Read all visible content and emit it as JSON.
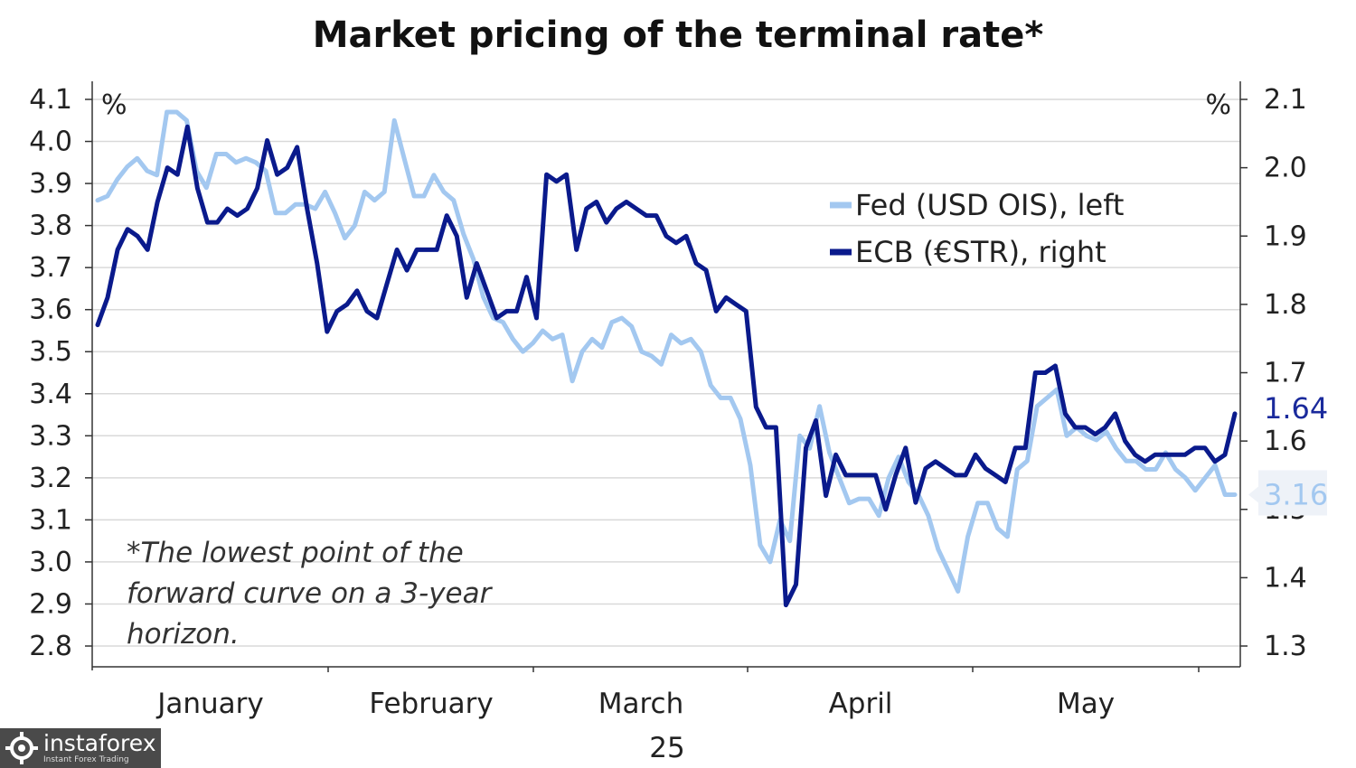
{
  "chart_data": {
    "type": "line",
    "title": "Market pricing of the terminal rate*",
    "annotation": [
      "*The lowest point of the",
      "forward curve on a 3-year",
      "horizon."
    ],
    "x_axis": {
      "categories": [
        "January",
        "February",
        "March",
        "April",
        "May"
      ],
      "year_label": "25"
    },
    "y_left": {
      "unit": "%",
      "ylim": [
        2.8,
        4.1
      ],
      "ticks": [
        "4.1",
        "4.0",
        "3.9",
        "3.8",
        "3.7",
        "3.6",
        "3.5",
        "3.4",
        "3.3",
        "3.2",
        "3.1",
        "3.0",
        "2.9",
        "2.8"
      ]
    },
    "y_right": {
      "unit": "%",
      "ylim": [
        1.3,
        2.1
      ],
      "ticks": [
        "2.1",
        "2.0",
        "1.9",
        "1.8",
        "1.7",
        "1.6",
        "1.5",
        "1.4",
        "1.3"
      ]
    },
    "grid": true,
    "legend": {
      "placement": "top-right"
    },
    "series": [
      {
        "name": "Fed (USD OIS), left",
        "axis": "left",
        "color": "#a3c8f0",
        "end_label": "3.16",
        "values": [
          3.86,
          3.87,
          3.91,
          3.94,
          3.96,
          3.93,
          3.92,
          4.07,
          4.07,
          4.05,
          3.93,
          3.89,
          3.97,
          3.97,
          3.95,
          3.96,
          3.95,
          3.93,
          3.83,
          3.83,
          3.85,
          3.85,
          3.84,
          3.88,
          3.83,
          3.77,
          3.8,
          3.88,
          3.86,
          3.88,
          4.05,
          3.96,
          3.87,
          3.87,
          3.92,
          3.88,
          3.86,
          3.78,
          3.72,
          3.63,
          3.58,
          3.57,
          3.53,
          3.5,
          3.52,
          3.55,
          3.53,
          3.54,
          3.43,
          3.5,
          3.53,
          3.51,
          3.57,
          3.58,
          3.56,
          3.5,
          3.49,
          3.47,
          3.54,
          3.52,
          3.53,
          3.5,
          3.42,
          3.39,
          3.39,
          3.34,
          3.23,
          3.04,
          3.0,
          3.1,
          3.05,
          3.3,
          3.27,
          3.37,
          3.26,
          3.2,
          3.14,
          3.15,
          3.15,
          3.11,
          3.2,
          3.25,
          3.19,
          3.16,
          3.11,
          3.03,
          2.98,
          2.93,
          3.06,
          3.14,
          3.14,
          3.08,
          3.06,
          3.22,
          3.24,
          3.37,
          3.39,
          3.41,
          3.3,
          3.32,
          3.3,
          3.29,
          3.31,
          3.27,
          3.24,
          3.24,
          3.22,
          3.22,
          3.26,
          3.22,
          3.2,
          3.17,
          3.2,
          3.23,
          3.16,
          3.16
        ]
      },
      {
        "name": "ECB (€STR), right",
        "axis": "right",
        "color": "#0a1a8c",
        "end_label": "1.64",
        "values": [
          1.77,
          1.81,
          1.88,
          1.91,
          1.9,
          1.88,
          1.95,
          2.0,
          1.99,
          2.06,
          1.97,
          1.92,
          1.92,
          1.94,
          1.93,
          1.94,
          1.97,
          2.04,
          1.99,
          2.0,
          2.03,
          1.94,
          1.86,
          1.76,
          1.79,
          1.8,
          1.82,
          1.79,
          1.78,
          1.83,
          1.88,
          1.85,
          1.88,
          1.88,
          1.88,
          1.93,
          1.9,
          1.81,
          1.86,
          1.82,
          1.78,
          1.79,
          1.79,
          1.84,
          1.78,
          1.99,
          1.98,
          1.99,
          1.88,
          1.94,
          1.95,
          1.92,
          1.94,
          1.95,
          1.94,
          1.93,
          1.93,
          1.9,
          1.89,
          1.9,
          1.86,
          1.85,
          1.79,
          1.81,
          1.8,
          1.79,
          1.65,
          1.62,
          1.62,
          1.36,
          1.39,
          1.59,
          1.63,
          1.52,
          1.58,
          1.55,
          1.55,
          1.55,
          1.55,
          1.5,
          1.55,
          1.59,
          1.51,
          1.56,
          1.57,
          1.56,
          1.55,
          1.55,
          1.58,
          1.56,
          1.55,
          1.54,
          1.59,
          1.59,
          1.7,
          1.7,
          1.71,
          1.64,
          1.62,
          1.62,
          1.61,
          1.62,
          1.64,
          1.6,
          1.58,
          1.57,
          1.58,
          1.58,
          1.58,
          1.58,
          1.59,
          1.59,
          1.57,
          1.58,
          1.64
        ]
      }
    ]
  },
  "watermark": {
    "brand": "instaforex",
    "tagline": "Instant Forex Trading"
  }
}
